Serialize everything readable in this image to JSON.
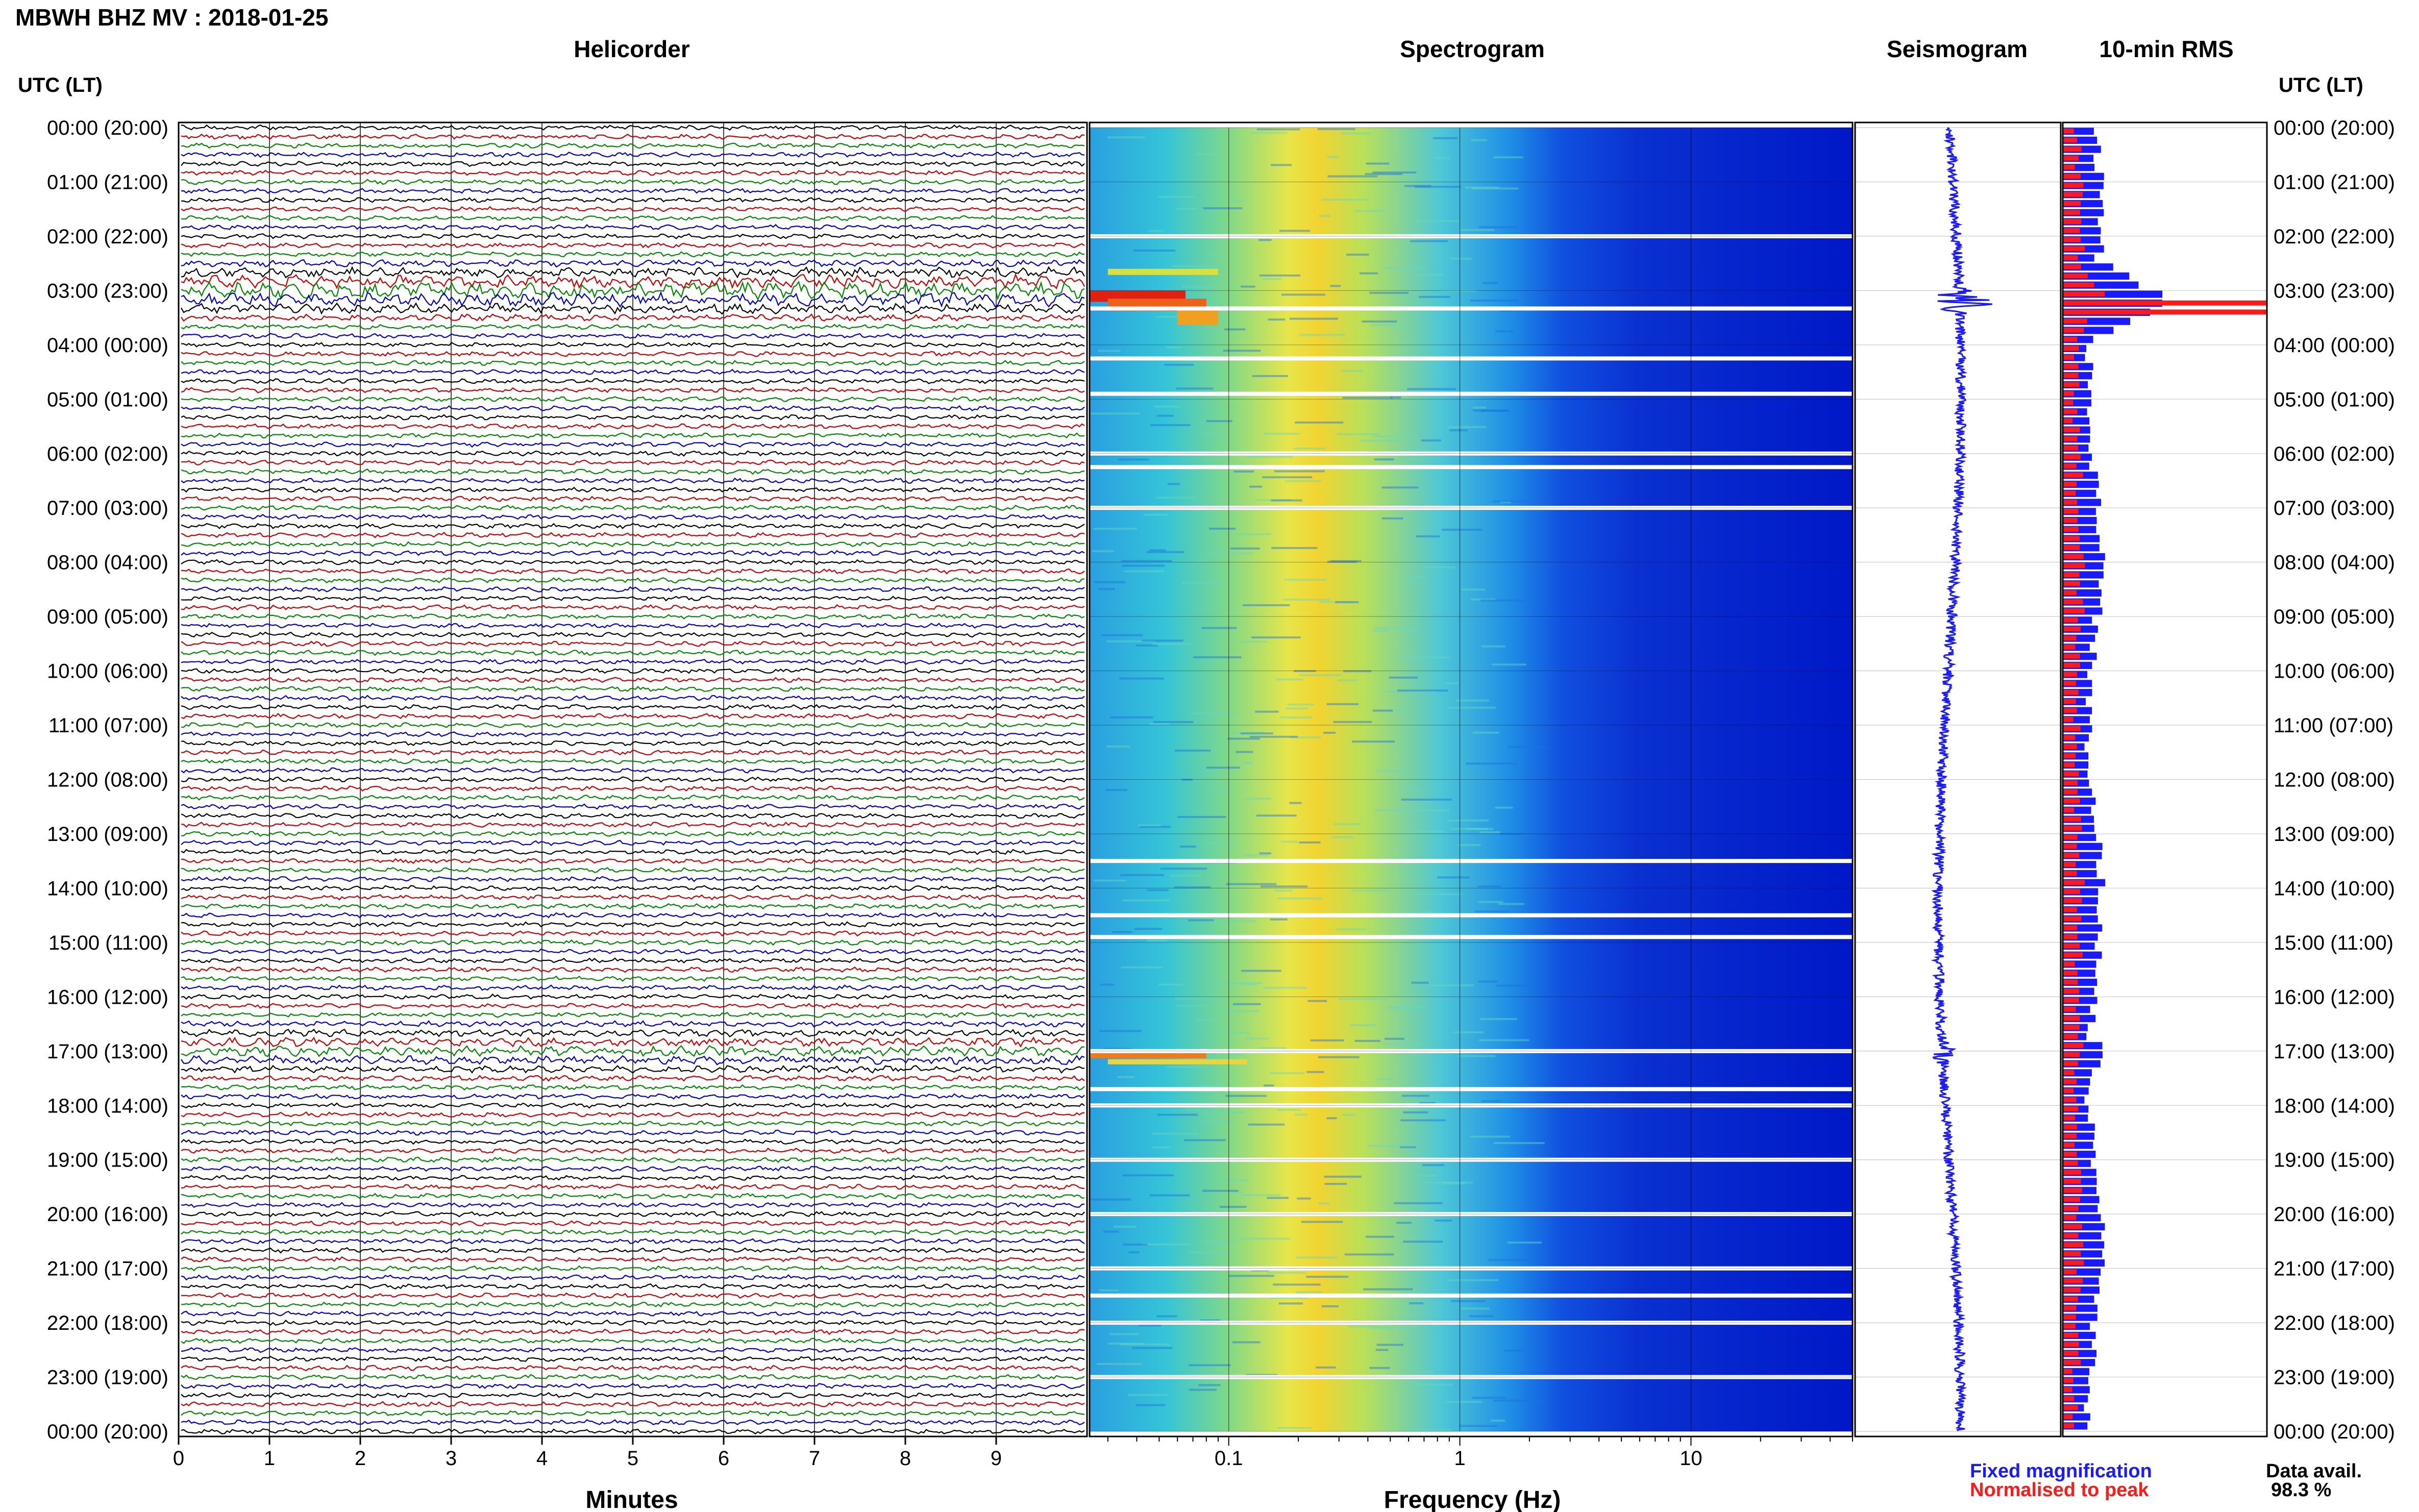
{
  "header": {
    "station_title": "MBWH BHZ MV : 2018-01-25",
    "utc_label_left": "UTC (LT)",
    "utc_label_right": "UTC (LT)"
  },
  "panels": {
    "helicorder_title": "Helicorder",
    "spectrogram_title": "Spectrogram",
    "seismogram_title": "Seismogram",
    "rms_title": "10-min RMS"
  },
  "time_labels": [
    "00:00 (20:00)",
    "01:00 (21:00)",
    "02:00 (22:00)",
    "03:00 (23:00)",
    "04:00 (00:00)",
    "05:00 (01:00)",
    "06:00 (02:00)",
    "07:00 (03:00)",
    "08:00 (04:00)",
    "09:00 (05:00)",
    "10:00 (06:00)",
    "11:00 (07:00)",
    "12:00 (08:00)",
    "13:00 (09:00)",
    "14:00 (10:00)",
    "15:00 (11:00)",
    "16:00 (12:00)",
    "17:00 (13:00)",
    "18:00 (14:00)",
    "19:00 (15:00)",
    "20:00 (16:00)",
    "21:00 (17:00)",
    "22:00 (18:00)",
    "23:00 (19:00)",
    "00:00 (20:00)"
  ],
  "helicorder_axis": {
    "ticks": [
      "0",
      "1",
      "2",
      "3",
      "4",
      "5",
      "6",
      "7",
      "8",
      "9"
    ],
    "label": "Minutes"
  },
  "spectrogram_axis": {
    "ticks": [
      "0.1",
      "1",
      "10"
    ],
    "label": "Frequency (Hz)",
    "scale": "log"
  },
  "legend": {
    "fixed": "Fixed magnification",
    "normalised": "Normalised to peak",
    "fixed_color": "#1a1aff",
    "normalised_color": "#ff1a1a"
  },
  "data_avail": {
    "label": "Data avail.",
    "value": "98.3 %"
  },
  "colors": {
    "trace_colors": [
      "#000000",
      "#cc0000",
      "#008800",
      "#0000cc"
    ],
    "spectro_low": "#0018c8",
    "spectro_high": "#e00000"
  },
  "chart_data": [
    {
      "type": "line",
      "name": "helicorder",
      "xlabel": "Minutes",
      "xlim": [
        0,
        10
      ],
      "hours": 24,
      "rows_per_hour": 6,
      "amplitude_events": [
        {
          "hour": 3.0,
          "level": "high"
        },
        {
          "hour": 17.0,
          "level": "moderate"
        }
      ]
    },
    {
      "type": "heatmap",
      "name": "spectrogram",
      "xlabel": "Frequency (Hz)",
      "xscale": "log",
      "xlim": [
        0.025,
        50
      ],
      "gaps_utc_hours": [
        2.0,
        3.33,
        4.25,
        4.9,
        6.0,
        6.25,
        7.0,
        13.5,
        14.5,
        14.9,
        17.0,
        17.7,
        18.0,
        19.0,
        20.0,
        21.0,
        21.5,
        22.0,
        23.0
      ]
    },
    {
      "type": "line",
      "name": "seismogram",
      "event_hours": [
        3.2,
        17.0
      ]
    },
    {
      "type": "bar",
      "name": "10-min RMS",
      "bins": 144,
      "series": [
        {
          "name": "Fixed magnification",
          "color": "#1a1aff"
        },
        {
          "name": "Normalised to peak",
          "color": "#ff1a1a"
        }
      ],
      "peak_hour": 3.2
    }
  ]
}
